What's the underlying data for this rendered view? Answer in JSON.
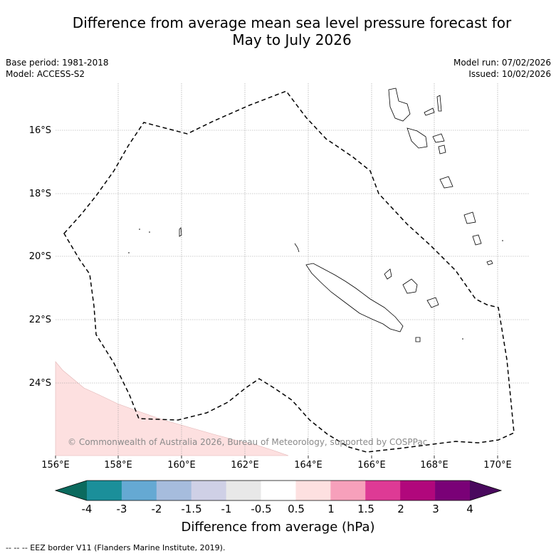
{
  "title_line1": "Difference from average mean sea level pressure forecast for",
  "title_line2": "May to July 2026",
  "base_period": "Base period: 1981-2018",
  "model": "Model: ACCESS-S2",
  "model_run": "Model run: 07/02/2026",
  "issued": "Issued: 10/02/2026",
  "lat_labels": [
    "16°S",
    "18°S",
    "20°S",
    "22°S",
    "24°S"
  ],
  "lon_labels": [
    "156°E",
    "158°E",
    "160°E",
    "162°E",
    "164°E",
    "166°E",
    "168°E",
    "170°E"
  ],
  "copyright": "© Commonwealth of Australia 2026, Bureau of Meteorology, supported by COSPPac",
  "colorbar": {
    "ticks": [
      "-4",
      "-3",
      "-2",
      "-1.5",
      "-1",
      "-0.5",
      "0.5",
      "1",
      "1.5",
      "2",
      "3",
      "4"
    ],
    "colors": [
      "#1b8f9a",
      "#65a9d3",
      "#a6bcdd",
      "#cfd0e6",
      "#e8e8e8",
      "#ffffff",
      "#fde0e0",
      "#f7a0bb",
      "#de3a95",
      "#b1077c",
      "#7a0177"
    ],
    "under_color": "#0b6a5e",
    "over_color": "#4a0a5e",
    "label": "Difference from average (hPa)"
  },
  "footnote": "-- -- -- EEZ border V11 (Flanders Marine Institute, 2019)."
}
